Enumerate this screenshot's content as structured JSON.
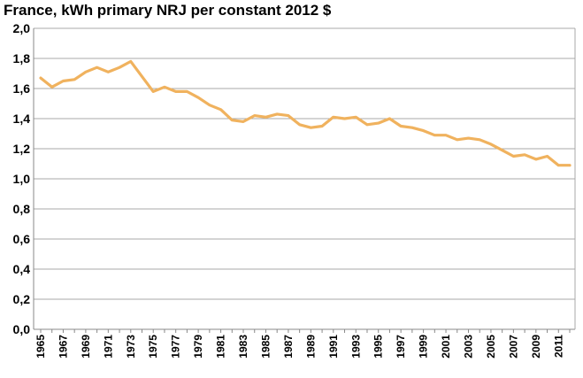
{
  "chart_data": {
    "type": "line",
    "title": "France, kWh primary NRJ per constant 2012 $",
    "xlabel": "",
    "ylabel": "",
    "ylim": [
      0,
      2.0
    ],
    "xlim": [
      1965,
      2012
    ],
    "grid": true,
    "legend": "none",
    "y_ticks": [
      "0,0",
      "0,2",
      "0,4",
      "0,6",
      "0,8",
      "1,0",
      "1,2",
      "1,4",
      "1,6",
      "1,8",
      "2,0"
    ],
    "x_ticks": [
      "1965",
      "1967",
      "1969",
      "1971",
      "1973",
      "1975",
      "1977",
      "1979",
      "1981",
      "1983",
      "1985",
      "1987",
      "1989",
      "1991",
      "1993",
      "1995",
      "1997",
      "1999",
      "2001",
      "2003",
      "2005",
      "2007",
      "2009",
      "2011"
    ],
    "x": [
      1965,
      1966,
      1967,
      1968,
      1969,
      1970,
      1971,
      1972,
      1973,
      1974,
      1975,
      1976,
      1977,
      1978,
      1979,
      1980,
      1981,
      1982,
      1983,
      1984,
      1985,
      1986,
      1987,
      1988,
      1989,
      1990,
      1991,
      1992,
      1993,
      1994,
      1995,
      1996,
      1997,
      1998,
      1999,
      2000,
      2001,
      2002,
      2003,
      2004,
      2005,
      2006,
      2007,
      2008,
      2009,
      2010,
      2011,
      2012
    ],
    "series": [
      {
        "color": "#f0b25e",
        "values": [
          1.67,
          1.61,
          1.65,
          1.66,
          1.71,
          1.74,
          1.71,
          1.74,
          1.78,
          1.68,
          1.58,
          1.61,
          1.58,
          1.58,
          1.54,
          1.49,
          1.46,
          1.39,
          1.38,
          1.42,
          1.41,
          1.43,
          1.42,
          1.36,
          1.34,
          1.35,
          1.41,
          1.4,
          1.41,
          1.36,
          1.37,
          1.4,
          1.35,
          1.34,
          1.32,
          1.29,
          1.29,
          1.26,
          1.27,
          1.26,
          1.23,
          1.19,
          1.15,
          1.16,
          1.13,
          1.15,
          1.09,
          1.09
        ]
      }
    ],
    "colors": {
      "grid": "#a8a8a8",
      "axis": "#888888",
      "line": "#f0b25e"
    }
  }
}
